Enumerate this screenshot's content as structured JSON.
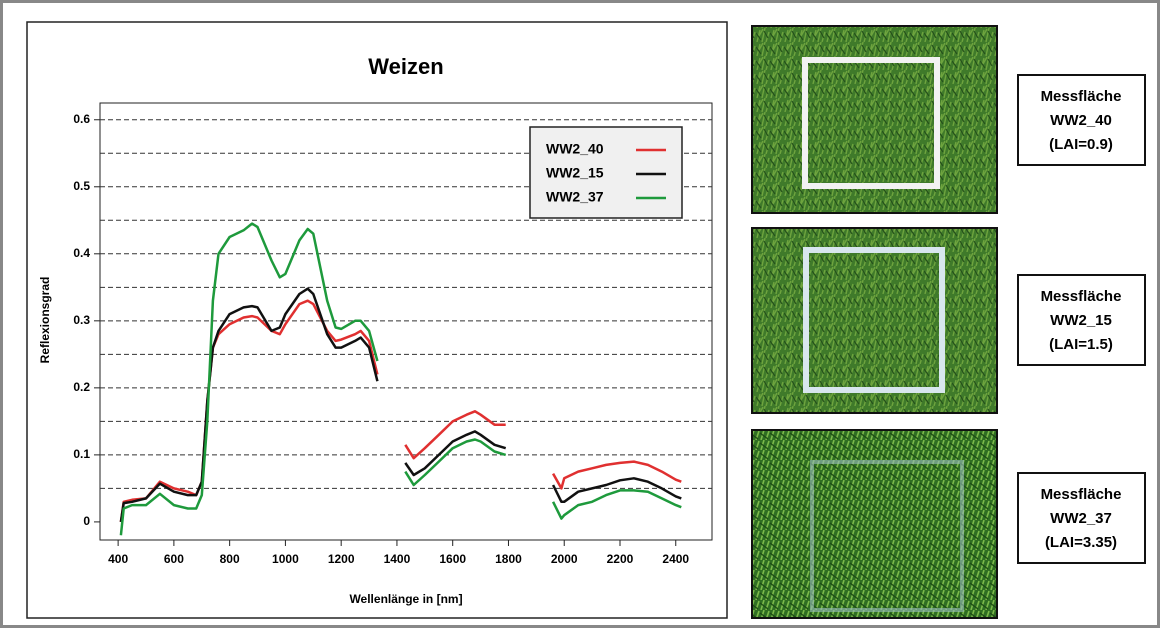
{
  "chart_data": {
    "type": "line",
    "title": "Weizen",
    "x_label": "Wellenlänge in [nm]",
    "y_label": "Reflexionsgrad",
    "x": [
      410,
      420,
      450,
      500,
      550,
      600,
      650,
      680,
      700,
      720,
      740,
      760,
      800,
      850,
      880,
      900,
      950,
      980,
      1000,
      1050,
      1080,
      1100,
      1150,
      1180,
      1200,
      1250,
      1270,
      1300,
      1330,
      1380,
      1430,
      1460,
      1500,
      1550,
      1600,
      1650,
      1680,
      1700,
      1750,
      1790,
      1880,
      1960,
      1990,
      2000,
      2050,
      2100,
      2150,
      2200,
      2250,
      2300,
      2350,
      2400,
      2420
    ],
    "series": [
      {
        "name": "WW2_40",
        "color": "#e03030",
        "values": [
          0.0,
          0.03,
          0.033,
          0.035,
          0.06,
          0.05,
          0.045,
          0.04,
          0.06,
          0.18,
          0.26,
          0.28,
          0.295,
          0.305,
          0.307,
          0.305,
          0.285,
          0.28,
          0.295,
          0.325,
          0.33,
          0.325,
          0.285,
          0.27,
          0.272,
          0.28,
          0.285,
          0.27,
          0.22,
          null,
          0.115,
          0.095,
          0.11,
          0.13,
          0.15,
          0.16,
          0.165,
          0.16,
          0.145,
          0.145,
          null,
          0.072,
          0.05,
          0.065,
          0.075,
          0.08,
          0.085,
          0.088,
          0.09,
          0.085,
          0.075,
          0.063,
          0.06
        ]
      },
      {
        "name": "WW2_15",
        "color": "#111111",
        "values": [
          0.0,
          0.028,
          0.03,
          0.035,
          0.057,
          0.045,
          0.04,
          0.04,
          0.06,
          0.18,
          0.26,
          0.285,
          0.31,
          0.32,
          0.322,
          0.32,
          0.285,
          0.29,
          0.31,
          0.34,
          0.348,
          0.34,
          0.28,
          0.26,
          0.26,
          0.27,
          0.275,
          0.26,
          0.21,
          null,
          0.088,
          0.07,
          0.08,
          0.1,
          0.12,
          0.13,
          0.135,
          0.13,
          0.115,
          0.11,
          null,
          0.055,
          0.03,
          0.03,
          0.045,
          0.05,
          0.055,
          0.062,
          0.065,
          0.06,
          0.05,
          0.038,
          0.035
        ]
      },
      {
        "name": "WW2_37",
        "color": "#1e9a3c",
        "values": [
          -0.02,
          0.02,
          0.025,
          0.025,
          0.042,
          0.025,
          0.02,
          0.02,
          0.04,
          0.15,
          0.33,
          0.4,
          0.425,
          0.435,
          0.445,
          0.44,
          0.39,
          0.365,
          0.37,
          0.42,
          0.437,
          0.43,
          0.33,
          0.29,
          0.288,
          0.3,
          0.3,
          0.285,
          0.24,
          null,
          0.075,
          0.055,
          0.07,
          0.09,
          0.11,
          0.12,
          0.123,
          0.12,
          0.105,
          0.1,
          null,
          0.03,
          0.005,
          0.01,
          0.025,
          0.03,
          0.04,
          0.047,
          0.047,
          0.045,
          0.035,
          0.025,
          0.022
        ]
      }
    ],
    "xlim": [
      335,
      2530
    ],
    "ylim": [
      -0.027,
      0.625
    ],
    "xticks": [
      400,
      600,
      800,
      1000,
      1200,
      1400,
      1600,
      1800,
      2000,
      2200,
      2400
    ],
    "yticks": [
      0,
      0.1,
      0.2,
      0.3,
      0.4,
      0.5,
      0.6
    ],
    "grid_y": [
      0.05,
      0.1,
      0.15,
      0.2,
      0.25,
      0.3,
      0.35,
      0.4,
      0.45,
      0.5,
      0.55,
      0.6
    ]
  },
  "panels": [
    {
      "lines": [
        "Messfläche",
        "WW2_40",
        "(LAI=0.9)"
      ]
    },
    {
      "lines": [
        "Messfläche",
        "WW2_15",
        "(LAI=1.5)"
      ]
    },
    {
      "lines": [
        "Messfläche",
        "WW2_37",
        "(LAI=3.35)"
      ]
    }
  ]
}
